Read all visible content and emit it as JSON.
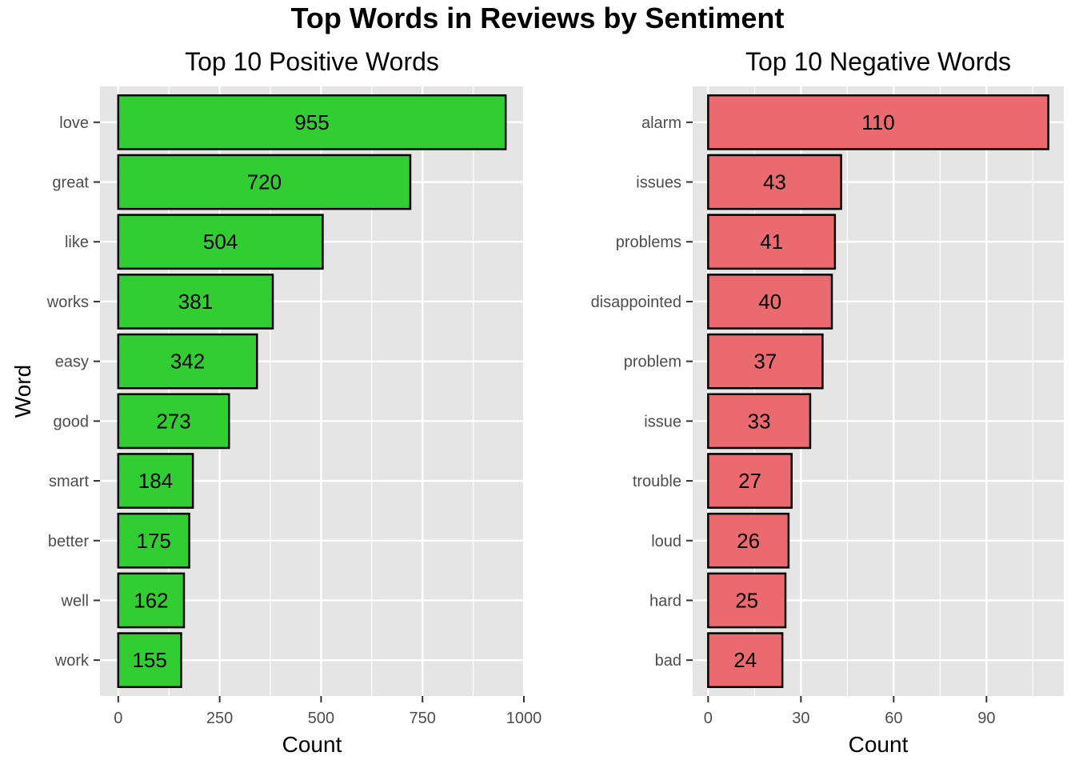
{
  "figure_title": "Top Words in Reviews by Sentiment",
  "chart_data": [
    {
      "type": "bar",
      "orientation": "horizontal",
      "title": "Top 10 Positive Words",
      "xlabel": "Count",
      "ylabel": "Word",
      "categories": [
        "love",
        "great",
        "like",
        "works",
        "easy",
        "good",
        "smart",
        "better",
        "well",
        "work"
      ],
      "values": [
        955,
        720,
        504,
        381,
        342,
        273,
        184,
        175,
        162,
        155
      ],
      "data_labels": [
        "955",
        "720",
        "504",
        "381",
        "342",
        "273",
        "184",
        "175",
        "162",
        "155"
      ],
      "xlim": [
        -45,
        1000
      ],
      "xticks": [
        0,
        250,
        500,
        750,
        1000
      ],
      "xtick_labels": [
        "0",
        "250",
        "500",
        "750",
        "1000"
      ],
      "bar_color": "#32CD32",
      "bar_edge_color": "#000000",
      "grid": true,
      "panel_background": "#E5E5E5"
    },
    {
      "type": "bar",
      "orientation": "horizontal",
      "title": "Top 10 Negative Words",
      "xlabel": "Count",
      "ylabel": "",
      "categories": [
        "alarm",
        "issues",
        "problems",
        "disappointed",
        "problem",
        "issue",
        "trouble",
        "loud",
        "hard",
        "bad"
      ],
      "values": [
        110,
        43,
        41,
        40,
        37,
        33,
        27,
        26,
        25,
        24
      ],
      "data_labels": [
        "110",
        "43",
        "41",
        "40",
        "37",
        "33",
        "27",
        "26",
        "25",
        "24"
      ],
      "xlim": [
        -5,
        115
      ],
      "xticks": [
        0,
        30,
        60,
        90
      ],
      "xtick_labels": [
        "0",
        "30",
        "60",
        "90"
      ],
      "bar_color": "#EA6A6F",
      "bar_edge_color": "#000000",
      "grid": true,
      "panel_background": "#E5E5E5"
    }
  ]
}
